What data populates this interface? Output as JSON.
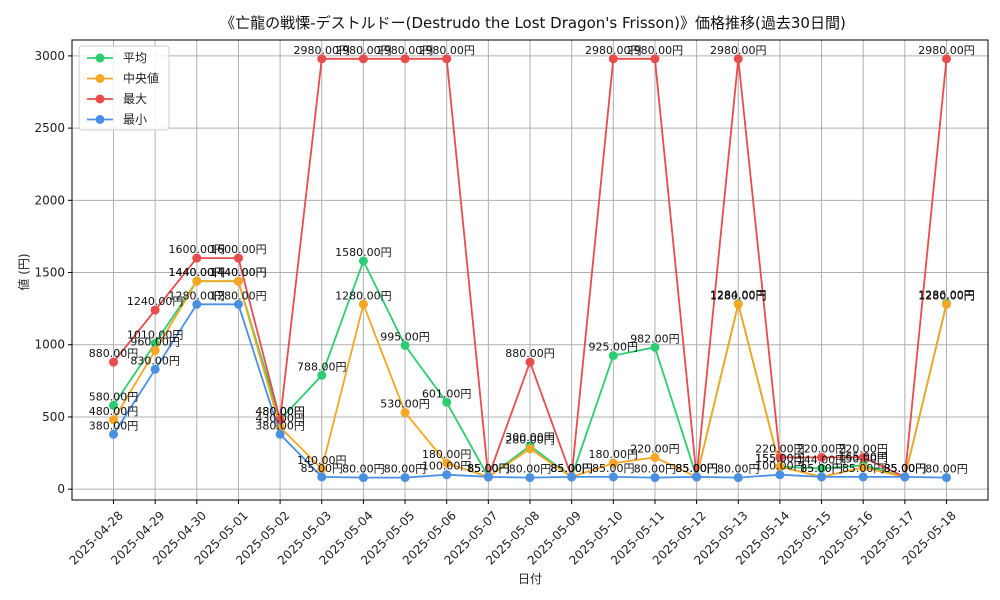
{
  "chart_data": {
    "type": "line",
    "title": "《亡龍の戦慄-デストルドー(Destrudo the Lost Dragon's Frisson)》価格推移(過去30日間)",
    "xlabel": "日付",
    "ylabel": "値 (円)",
    "ylim": [
      -75,
      3110
    ],
    "yticks": [
      0,
      500,
      1000,
      1500,
      2000,
      2500,
      3000
    ],
    "grid": true,
    "legend_position": "top-left",
    "label_suffix": "円",
    "categories": [
      "2025-04-28",
      "2025-04-29",
      "2025-04-30",
      "2025-05-01",
      "2025-05-02",
      "2025-05-03",
      "2025-05-04",
      "2025-05-05",
      "2025-05-06",
      "2025-05-07",
      "2025-05-08",
      "2025-05-09",
      "2025-05-10",
      "2025-05-11",
      "2025-05-12",
      "2025-05-13",
      "2025-05-14",
      "2025-05-15",
      "2025-05-16",
      "2025-05-17",
      "2025-05-18"
    ],
    "series": [
      {
        "name": "平均",
        "color": "#2ecc71",
        "values": [
          580,
          1010,
          1440,
          1440,
          480,
          788,
          1580,
          995,
          601,
          85,
          300,
          85,
          925,
          982,
          85,
          1284,
          155,
          144,
          165,
          85,
          1286
        ]
      },
      {
        "name": "中央値",
        "color": "#f5a623",
        "values": [
          480,
          960,
          1440,
          1440,
          430,
          140,
          1280,
          530,
          180,
          85,
          280,
          85,
          180,
          220,
          85,
          1280,
          155,
          85,
          150,
          85,
          1280
        ]
      },
      {
        "name": "最大",
        "color": "#e84c4c",
        "values": [
          880,
          1240,
          1600,
          1600,
          480,
          2980,
          2980,
          2980,
          2980,
          85,
          880,
          85,
          2980,
          2980,
          85,
          2980,
          220,
          220,
          220,
          85,
          2980
        ]
      },
      {
        "name": "最小",
        "color": "#4a90e2",
        "values": [
          380,
          830,
          1280,
          1280,
          380,
          85,
          80,
          80,
          100,
          85,
          80,
          85,
          85,
          80,
          85,
          80,
          100,
          85,
          85,
          85,
          80
        ]
      }
    ]
  }
}
